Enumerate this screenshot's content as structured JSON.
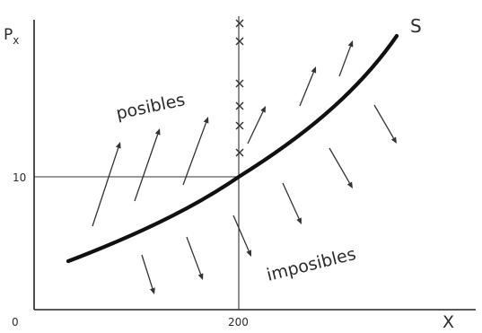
{
  "axes": {
    "y_label": "P",
    "y_label_subscript": "x",
    "x_label": "X",
    "origin_label": "0",
    "y_tick_label": "10",
    "x_tick_label": "200"
  },
  "curve_label": "S",
  "regions": {
    "feasible": "posibles",
    "infeasible": "imposibles"
  }
}
